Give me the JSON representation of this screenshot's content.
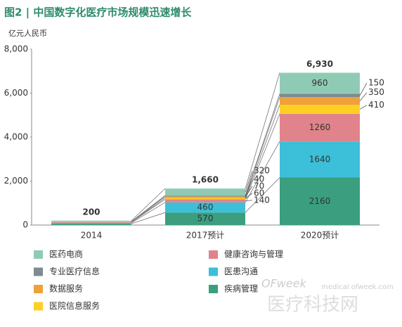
{
  "chart_data": {
    "type": "stacked_bar",
    "title": "图2 | 中国数字化医疗市场规模迅速增长",
    "y_label": "亿元人民币",
    "categories": [
      "2014",
      "2017预计",
      "2020预计"
    ],
    "series": [
      {
        "name": "疾病管理",
        "color": "#3a9e7f",
        "values": [
          60,
          570,
          2160
        ]
      },
      {
        "name": "医患沟通",
        "color": "#3cbfd8",
        "values": [
          40,
          460,
          1640
        ]
      },
      {
        "name": "健康咨询与管理",
        "color": "#e0838a",
        "values": [
          30,
          140,
          1260
        ]
      },
      {
        "name": "医院信息服务",
        "color": "#fdd023",
        "values": [
          10,
          60,
          410
        ]
      },
      {
        "name": "数据服务",
        "color": "#f0a13a",
        "values": [
          10,
          70,
          350
        ]
      },
      {
        "name": "专业医疗信息",
        "color": "#7f8a92",
        "values": [
          10,
          40,
          150
        ]
      },
      {
        "name": "医药电商",
        "color": "#8fcbb4",
        "values": [
          40,
          320,
          960
        ]
      }
    ],
    "totals": [
      200,
      1660,
      6930
    ],
    "total_labels": [
      "200",
      "1,660",
      "6,930"
    ],
    "ylim": [
      0,
      8000
    ],
    "yticks": [
      0,
      {
        "value": 2000,
        "label": "2,000"
      },
      {
        "value": 4000,
        "label": "4,000"
      },
      {
        "value": 6000,
        "label": "6,000"
      },
      {
        "value": 8000,
        "label": "8,000"
      }
    ],
    "legend_order": [
      6,
      5,
      4,
      3,
      2,
      1,
      0
    ],
    "watermark": {
      "brand": "OFweek",
      "url": "medical.ofweek.com",
      "name": "医疗科技网"
    }
  }
}
